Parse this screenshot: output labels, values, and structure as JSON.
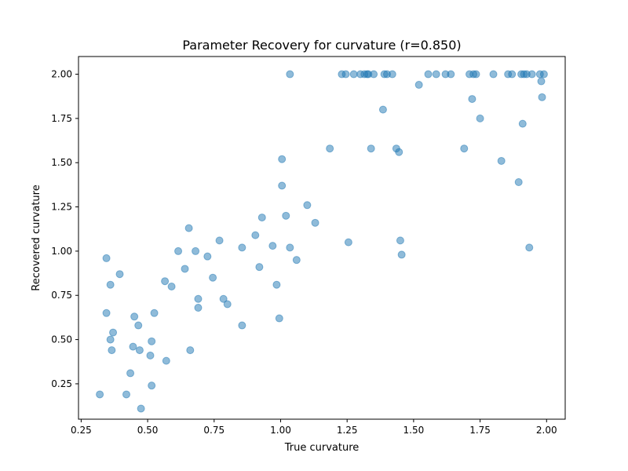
{
  "chart_data": {
    "type": "scatter",
    "title": "Parameter Recovery for curvature (r=0.850)",
    "xlabel": "True curvature",
    "ylabel": "Recovered curvature",
    "xlim": [
      0.24,
      2.07
    ],
    "ylim": [
      0.05,
      2.1
    ],
    "xticks": [
      {
        "value": 0.25,
        "label": "0.25"
      },
      {
        "value": 0.5,
        "label": "0.50"
      },
      {
        "value": 0.75,
        "label": "0.75"
      },
      {
        "value": 1.0,
        "label": "1.00"
      },
      {
        "value": 1.25,
        "label": "1.25"
      },
      {
        "value": 1.5,
        "label": "1.50"
      },
      {
        "value": 1.75,
        "label": "1.75"
      },
      {
        "value": 2.0,
        "label": "2.00"
      }
    ],
    "yticks": [
      {
        "value": 0.25,
        "label": "0.25"
      },
      {
        "value": 0.5,
        "label": "0.50"
      },
      {
        "value": 0.75,
        "label": "0.75"
      },
      {
        "value": 1.0,
        "label": "1.00"
      },
      {
        "value": 1.25,
        "label": "1.25"
      },
      {
        "value": 1.5,
        "label": "1.50"
      },
      {
        "value": 1.75,
        "label": "1.75"
      },
      {
        "value": 2.0,
        "label": "2.00"
      }
    ],
    "grid": false,
    "marker_color": "#1f77b4",
    "marker_alpha": 0.5,
    "points": [
      {
        "x": 0.32,
        "y": 0.19
      },
      {
        "x": 0.345,
        "y": 0.96
      },
      {
        "x": 0.345,
        "y": 0.65
      },
      {
        "x": 0.36,
        "y": 0.81
      },
      {
        "x": 0.36,
        "y": 0.5
      },
      {
        "x": 0.365,
        "y": 0.44
      },
      {
        "x": 0.37,
        "y": 0.54
      },
      {
        "x": 0.395,
        "y": 0.87
      },
      {
        "x": 0.42,
        "y": 0.19
      },
      {
        "x": 0.435,
        "y": 0.31
      },
      {
        "x": 0.445,
        "y": 0.46
      },
      {
        "x": 0.45,
        "y": 0.63
      },
      {
        "x": 0.465,
        "y": 0.58
      },
      {
        "x": 0.47,
        "y": 0.44
      },
      {
        "x": 0.475,
        "y": 0.11
      },
      {
        "x": 0.51,
        "y": 0.41
      },
      {
        "x": 0.515,
        "y": 0.49
      },
      {
        "x": 0.515,
        "y": 0.24
      },
      {
        "x": 0.525,
        "y": 0.65
      },
      {
        "x": 0.565,
        "y": 0.83
      },
      {
        "x": 0.57,
        "y": 0.38
      },
      {
        "x": 0.59,
        "y": 0.8
      },
      {
        "x": 0.615,
        "y": 1.0
      },
      {
        "x": 0.64,
        "y": 0.9
      },
      {
        "x": 0.655,
        "y": 1.13
      },
      {
        "x": 0.66,
        "y": 0.44
      },
      {
        "x": 0.68,
        "y": 1.0
      },
      {
        "x": 0.69,
        "y": 0.73
      },
      {
        "x": 0.69,
        "y": 0.68
      },
      {
        "x": 0.725,
        "y": 0.97
      },
      {
        "x": 0.745,
        "y": 0.85
      },
      {
        "x": 0.77,
        "y": 1.06
      },
      {
        "x": 0.785,
        "y": 0.73
      },
      {
        "x": 0.8,
        "y": 0.7
      },
      {
        "x": 0.855,
        "y": 1.02
      },
      {
        "x": 0.855,
        "y": 0.58
      },
      {
        "x": 0.905,
        "y": 1.09
      },
      {
        "x": 0.92,
        "y": 0.91
      },
      {
        "x": 0.93,
        "y": 1.19
      },
      {
        "x": 0.97,
        "y": 1.03
      },
      {
        "x": 0.985,
        "y": 0.81
      },
      {
        "x": 0.995,
        "y": 0.62
      },
      {
        "x": 1.005,
        "y": 1.52
      },
      {
        "x": 1.005,
        "y": 1.37
      },
      {
        "x": 1.02,
        "y": 1.2
      },
      {
        "x": 1.035,
        "y": 1.02
      },
      {
        "x": 1.035,
        "y": 2.0
      },
      {
        "x": 1.06,
        "y": 0.95
      },
      {
        "x": 1.1,
        "y": 1.26
      },
      {
        "x": 1.13,
        "y": 1.16
      },
      {
        "x": 1.185,
        "y": 1.58
      },
      {
        "x": 1.23,
        "y": 2.0
      },
      {
        "x": 1.245,
        "y": 2.0
      },
      {
        "x": 1.255,
        "y": 1.05
      },
      {
        "x": 1.275,
        "y": 2.0
      },
      {
        "x": 1.3,
        "y": 2.0
      },
      {
        "x": 1.315,
        "y": 2.0
      },
      {
        "x": 1.325,
        "y": 2.0
      },
      {
        "x": 1.33,
        "y": 2.0
      },
      {
        "x": 1.34,
        "y": 1.58
      },
      {
        "x": 1.35,
        "y": 2.0
      },
      {
        "x": 1.385,
        "y": 1.8
      },
      {
        "x": 1.39,
        "y": 2.0
      },
      {
        "x": 1.4,
        "y": 2.0
      },
      {
        "x": 1.42,
        "y": 2.0
      },
      {
        "x": 1.435,
        "y": 1.58
      },
      {
        "x": 1.445,
        "y": 1.56
      },
      {
        "x": 1.45,
        "y": 1.06
      },
      {
        "x": 1.455,
        "y": 0.98
      },
      {
        "x": 1.52,
        "y": 1.94
      },
      {
        "x": 1.555,
        "y": 2.0
      },
      {
        "x": 1.585,
        "y": 2.0
      },
      {
        "x": 1.62,
        "y": 2.0
      },
      {
        "x": 1.64,
        "y": 2.0
      },
      {
        "x": 1.69,
        "y": 1.58
      },
      {
        "x": 1.71,
        "y": 2.0
      },
      {
        "x": 1.72,
        "y": 1.86
      },
      {
        "x": 1.725,
        "y": 2.0
      },
      {
        "x": 1.735,
        "y": 2.0
      },
      {
        "x": 1.75,
        "y": 1.75
      },
      {
        "x": 1.8,
        "y": 2.0
      },
      {
        "x": 1.83,
        "y": 1.51
      },
      {
        "x": 1.855,
        "y": 2.0
      },
      {
        "x": 1.87,
        "y": 2.0
      },
      {
        "x": 1.895,
        "y": 1.39
      },
      {
        "x": 1.905,
        "y": 2.0
      },
      {
        "x": 1.91,
        "y": 1.72
      },
      {
        "x": 1.915,
        "y": 2.0
      },
      {
        "x": 1.925,
        "y": 2.0
      },
      {
        "x": 1.935,
        "y": 1.02
      },
      {
        "x": 1.945,
        "y": 2.0
      },
      {
        "x": 1.975,
        "y": 2.0
      },
      {
        "x": 1.98,
        "y": 1.96
      },
      {
        "x": 1.983,
        "y": 1.87
      },
      {
        "x": 1.99,
        "y": 2.0
      }
    ]
  }
}
